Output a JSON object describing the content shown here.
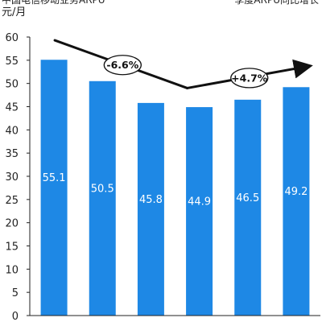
{
  "header": {
    "left_text": "中国电信移动业务ARPU",
    "right_text": "季度ARPU同比增长",
    "unit_label": "元/月"
  },
  "colors": {
    "bar": "#1e88e5",
    "bar_label": "#ffffff",
    "trend": "#111111",
    "axis": "#222222"
  },
  "chart_data": {
    "type": "bar",
    "categories": [
      "",
      "",
      "",
      "",
      "",
      ""
    ],
    "values": [
      55.1,
      50.5,
      45.8,
      44.9,
      46.5,
      49.2
    ],
    "data_labels": [
      "55.1",
      "50.5",
      "45.8",
      "44.9",
      "46.5",
      "49.2"
    ],
    "ylabel": "元/月",
    "ylim": [
      0,
      60
    ],
    "y_ticks": [
      0,
      5,
      10,
      15,
      20,
      25,
      30,
      35,
      40,
      45,
      50,
      55,
      60
    ],
    "grid": false,
    "annotations": [
      {
        "text": "-6.6%",
        "trend_from": 59.3,
        "trend_to": 49.0
      },
      {
        "text": "+4.7%",
        "trend_from": 49.0,
        "trend_to": 53.7
      }
    ]
  }
}
